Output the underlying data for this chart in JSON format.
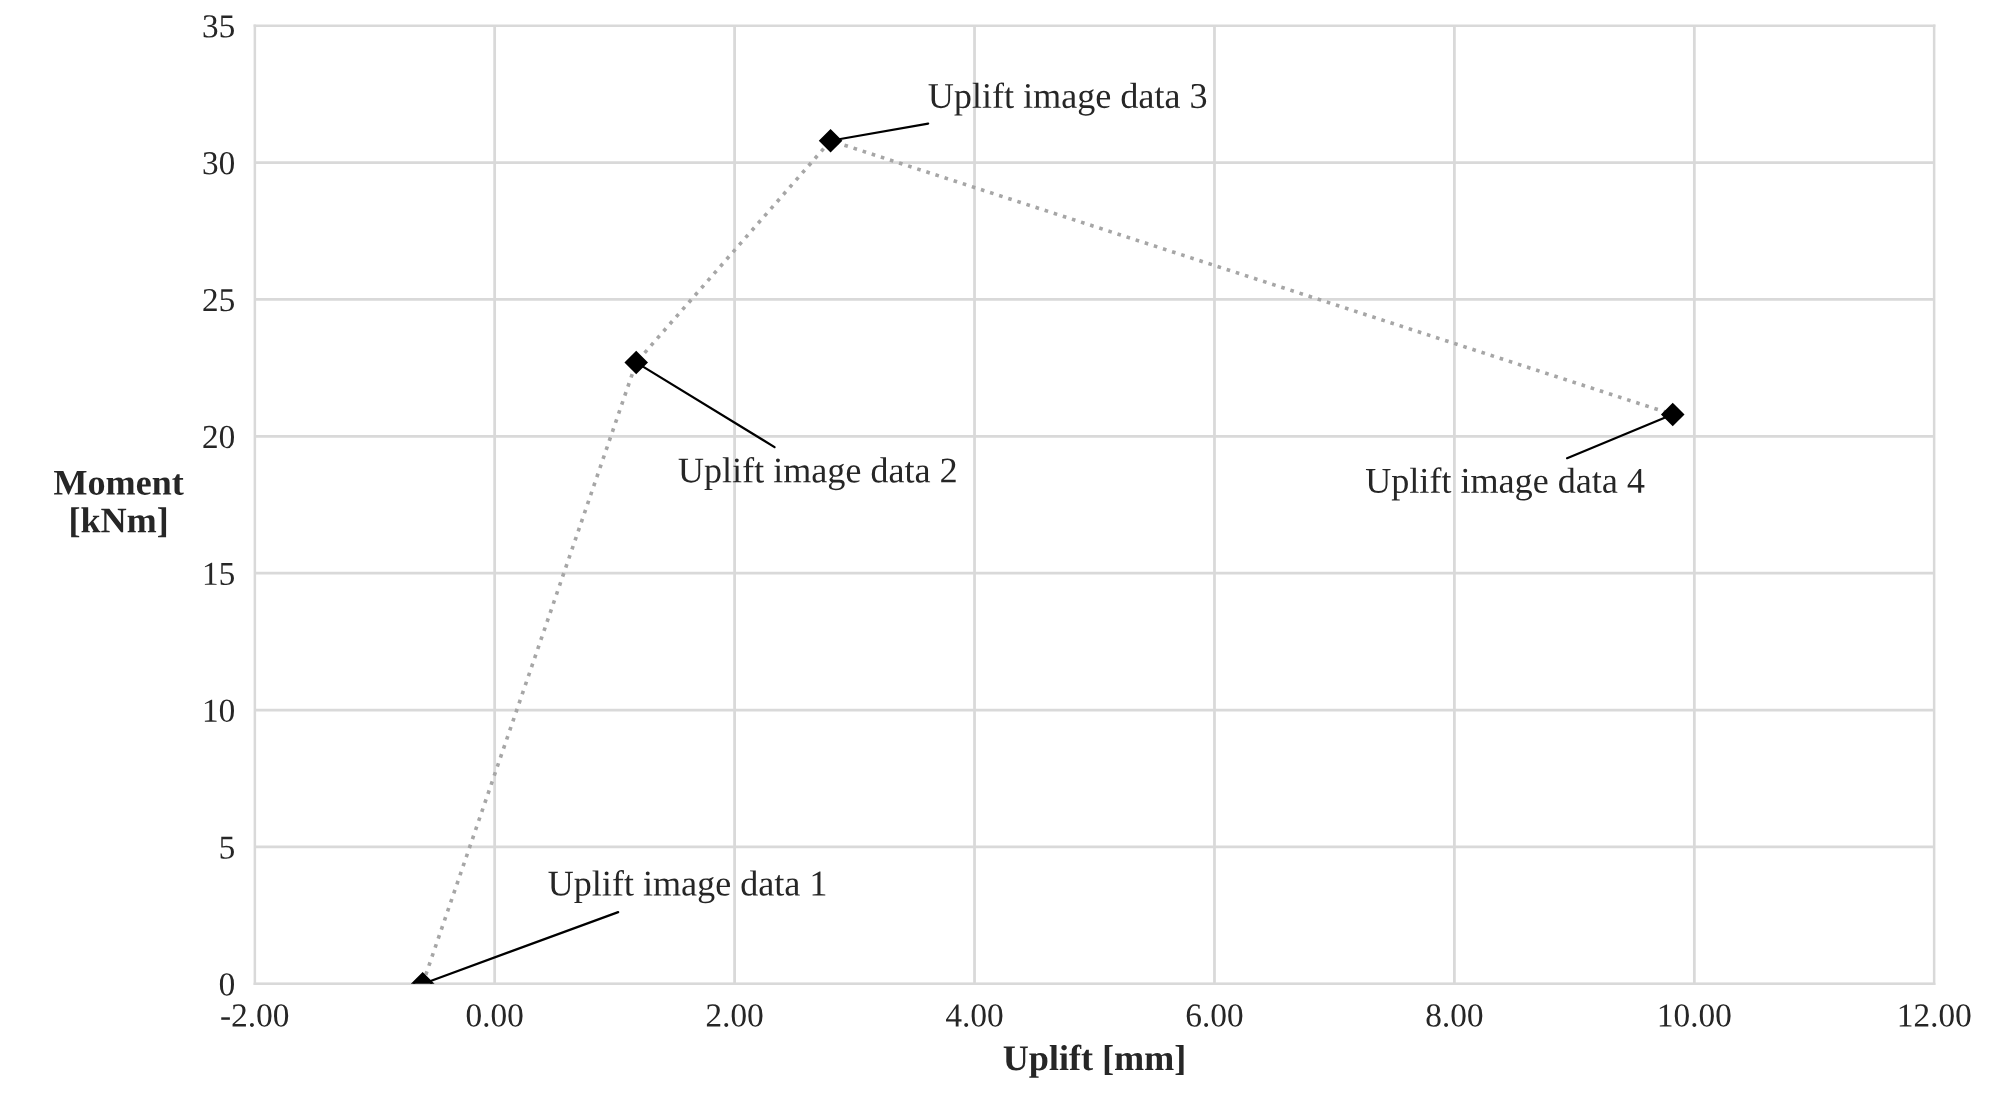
{
  "chart_data": {
    "type": "line",
    "xlabel": "Uplift [mm]",
    "ylabel": "Moment\n[kNm]",
    "x": [
      -0.6,
      1.18,
      2.8,
      9.82
    ],
    "series": [
      {
        "color": "#000000",
        "values": [
          0,
          22.7,
          30.8,
          20.8
        ]
      }
    ],
    "marker": "diamond",
    "line_style": "dotted",
    "xlim": [
      -2,
      12
    ],
    "xticks": [
      {
        "value": -2,
        "label": "-2.00"
      },
      {
        "value": 0,
        "label": "0.00"
      },
      {
        "value": 2,
        "label": "2.00"
      },
      {
        "value": 4,
        "label": "4.00"
      },
      {
        "value": 6,
        "label": "6.00"
      },
      {
        "value": 8,
        "label": "8.00"
      },
      {
        "value": 10,
        "label": "10.00"
      },
      {
        "value": 12,
        "label": "12.00"
      }
    ],
    "ylim": [
      0,
      35
    ],
    "yticks": [
      0,
      5,
      10,
      15,
      20,
      25,
      30,
      35
    ],
    "grid": true,
    "annotations": [
      {
        "text": "Uplift image data 1",
        "x": -0.6,
        "y": 0
      },
      {
        "text": "Uplift image data 2",
        "x": 1.18,
        "y": 22.7
      },
      {
        "text": "Uplift image data 3",
        "x": 2.8,
        "y": 30.8
      },
      {
        "text": "Uplift image data 4",
        "x": 9.82,
        "y": 20.8
      }
    ]
  }
}
